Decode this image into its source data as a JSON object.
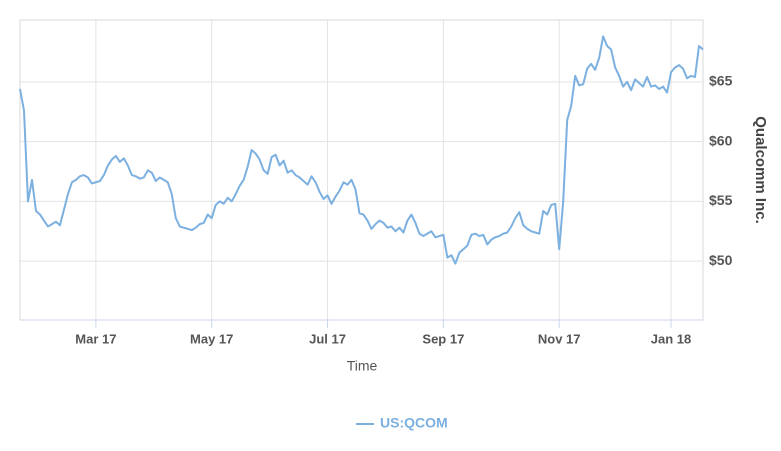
{
  "chart_data": {
    "type": "line",
    "x_label": "Time",
    "y_label": "Qualcomm Inc.",
    "categories": [
      null,
      null,
      null,
      null,
      null,
      null,
      null,
      null,
      null,
      null,
      null,
      null,
      null,
      null,
      null,
      null,
      null,
      null,
      null,
      "Mar 17",
      null,
      null,
      null,
      null,
      null,
      null,
      null,
      null,
      null,
      null,
      null,
      null,
      null,
      null,
      null,
      null,
      null,
      null,
      null,
      null,
      null,
      null,
      null,
      null,
      null,
      null,
      null,
      null,
      "May 17",
      null,
      null,
      null,
      null,
      null,
      null,
      null,
      null,
      null,
      null,
      null,
      null,
      null,
      null,
      null,
      null,
      null,
      null,
      null,
      null,
      null,
      null,
      null,
      null,
      null,
      null,
      null,
      null,
      "Jul 17",
      null,
      null,
      null,
      null,
      null,
      null,
      null,
      null,
      null,
      null,
      null,
      null,
      null,
      null,
      null,
      null,
      null,
      null,
      null,
      null,
      null,
      null,
      null,
      null,
      null,
      null,
      null,
      null,
      "Sep 17",
      null,
      null,
      null,
      null,
      null,
      null,
      null,
      null,
      null,
      null,
      null,
      null,
      null,
      null,
      null,
      null,
      null,
      null,
      null,
      null,
      null,
      null,
      null,
      null,
      null,
      null,
      null,
      null,
      "Nov 17",
      null,
      null,
      null,
      null,
      null,
      null,
      null,
      null,
      null,
      null,
      null,
      null,
      null,
      null,
      null,
      null,
      null,
      null,
      null,
      null,
      null,
      null,
      null,
      null,
      null,
      null,
      null,
      "Jan 18",
      null,
      null,
      null,
      null,
      null,
      null,
      null,
      null
    ],
    "series": [
      {
        "name": "US:QCOM",
        "color": "#7cb0e0",
        "values": [
          64.4,
          62.6,
          55.0,
          56.8,
          54.2,
          53.9,
          53.4,
          52.9,
          53.1,
          53.3,
          53.0,
          54.3,
          55.6,
          56.6,
          56.8,
          57.1,
          57.2,
          57.0,
          56.5,
          56.6,
          56.7,
          57.2,
          58.0,
          58.5,
          58.8,
          58.3,
          58.6,
          58.0,
          57.2,
          57.1,
          56.9,
          57.0,
          57.6,
          57.4,
          56.7,
          57.0,
          56.8,
          56.6,
          55.6,
          53.6,
          52.9,
          52.8,
          52.7,
          52.6,
          52.8,
          53.1,
          53.2,
          53.9,
          53.6,
          54.7,
          55.0,
          54.8,
          55.3,
          55.0,
          55.6,
          56.3,
          56.8,
          57.9,
          59.3,
          59.0,
          58.5,
          57.6,
          57.3,
          58.7,
          58.9,
          58.0,
          58.4,
          57.4,
          57.6,
          57.2,
          57.0,
          56.7,
          56.4,
          57.1,
          56.6,
          55.8,
          55.2,
          55.5,
          54.8,
          55.4,
          55.9,
          56.6,
          56.4,
          56.8,
          56.0,
          54.0,
          53.9,
          53.4,
          52.7,
          53.1,
          53.4,
          53.2,
          52.8,
          52.9,
          52.5,
          52.8,
          52.4,
          53.4,
          53.9,
          53.2,
          52.3,
          52.1,
          52.3,
          52.5,
          52.0,
          52.1,
          52.2,
          50.3,
          50.5,
          49.8,
          50.7,
          51.0,
          51.3,
          52.2,
          52.3,
          52.1,
          52.2,
          51.4,
          51.8,
          52.0,
          52.1,
          52.3,
          52.4,
          52.9,
          53.6,
          54.1,
          53.0,
          52.7,
          52.5,
          52.4,
          52.3,
          54.2,
          53.9,
          54.7,
          54.8,
          51.0,
          55.0,
          61.8,
          63.0,
          65.5,
          64.7,
          64.8,
          66.1,
          66.5,
          66.0,
          67.0,
          68.8,
          68.0,
          67.7,
          66.2,
          65.5,
          64.6,
          65.0,
          64.3,
          65.2,
          64.9,
          64.6,
          65.4,
          64.6,
          64.7,
          64.4,
          64.6,
          64.1,
          65.8,
          66.2,
          66.4,
          66.1,
          65.3,
          65.5,
          65.4,
          68.0,
          67.7
        ]
      }
    ],
    "ylim": [
      45.08,
      70.17
    ],
    "yticks": [
      {
        "value": 50,
        "label": "$50"
      },
      {
        "value": 55,
        "label": "$55"
      },
      {
        "value": 60,
        "label": "$60"
      },
      {
        "value": 65,
        "label": "$65"
      }
    ],
    "grid": true
  }
}
